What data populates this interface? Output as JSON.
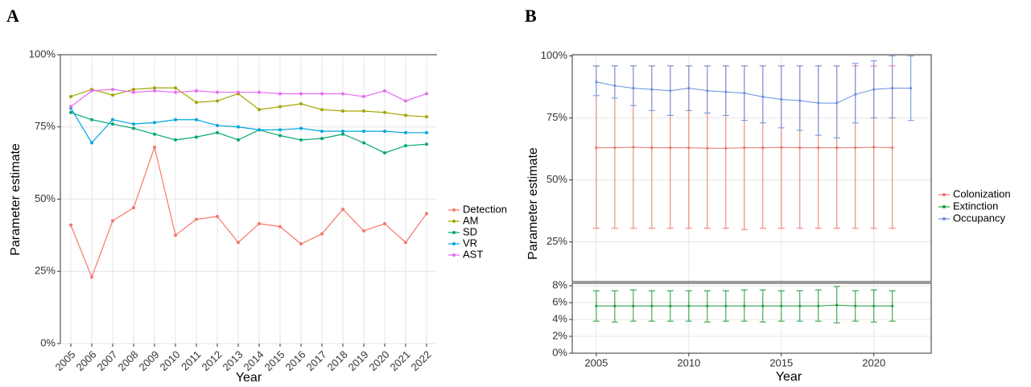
{
  "chart_data": [
    {
      "type": "line",
      "label": "A",
      "x_label": "Year",
      "y_label": "Parameter estimate",
      "grid": true,
      "categories": [
        "2005",
        "2006",
        "2007",
        "2008",
        "2009",
        "2010",
        "2011",
        "2012",
        "2013",
        "2014",
        "2015",
        "2016",
        "2017",
        "2018",
        "2019",
        "2020",
        "2021",
        "2022"
      ],
      "ylim": [
        0,
        100
      ],
      "yticks": [
        {
          "value": 0,
          "label": "0%"
        },
        {
          "value": 25,
          "label": "25%"
        },
        {
          "value": 50,
          "label": "50%"
        },
        {
          "value": 75,
          "label": "75%"
        },
        {
          "value": 100,
          "label": "100%"
        }
      ],
      "series": [
        {
          "name": "Detection",
          "color": "#F8766D",
          "values": [
            41,
            23,
            42.5,
            47,
            68,
            37.5,
            43,
            44,
            35,
            41.5,
            40.5,
            34.5,
            38,
            46.5,
            39,
            41.5,
            35,
            45
          ]
        },
        {
          "name": "AM",
          "color": "#A3A500",
          "values": [
            85.5,
            88,
            86,
            88,
            88.5,
            88.5,
            83.5,
            84,
            86.5,
            81,
            82,
            83,
            81,
            80.5,
            80.5,
            80,
            79,
            78.5
          ]
        },
        {
          "name": "SD",
          "color": "#00A86B",
          "values": [
            80,
            77.5,
            76,
            74.5,
            72.5,
            70.5,
            71.5,
            73,
            70.5,
            74,
            72,
            70.5,
            71,
            72.5,
            69.5,
            66,
            68.5,
            69
          ]
        },
        {
          "name": "VR",
          "color": "#00A5E0",
          "values": [
            81.5,
            69.5,
            77.5,
            76,
            76.5,
            77.5,
            77.5,
            75.5,
            75,
            74,
            74,
            74.5,
            73.5,
            73.5,
            73.5,
            73.5,
            73,
            73
          ]
        },
        {
          "name": "AST",
          "color": "#E76BF3",
          "values": [
            82,
            87.5,
            88,
            87,
            87.5,
            87,
            87.5,
            87,
            87,
            87,
            86.5,
            86.5,
            86.5,
            86.5,
            85.5,
            87.5,
            84,
            86.5
          ]
        }
      ]
    },
    {
      "type": "errorline",
      "label": "B",
      "x_label": "Year",
      "y_label": "Parameter estimate",
      "grid": true,
      "x": [
        2005,
        2006,
        2007,
        2008,
        2009,
        2010,
        2011,
        2012,
        2013,
        2014,
        2015,
        2016,
        2017,
        2018,
        2019,
        2020,
        2021,
        2022
      ],
      "xlim": [
        2003.7,
        2023.1
      ],
      "xticks": [
        2005,
        2010,
        2015,
        2020
      ],
      "ylim": [
        9,
        100.5
      ],
      "yticks": [
        {
          "value": 25,
          "label": "25%"
        },
        {
          "value": 50,
          "label": "50%"
        },
        {
          "value": 75,
          "label": "75%"
        },
        {
          "value": 100,
          "label": "100%"
        }
      ],
      "y2lim": [
        0,
        8.3
      ],
      "y2ticks": [
        {
          "value": 0,
          "label": "0%"
        },
        {
          "value": 2,
          "label": "2%"
        },
        {
          "value": 4,
          "label": "4%"
        },
        {
          "value": 6,
          "label": "6%"
        },
        {
          "value": 8,
          "label": "8%"
        }
      ],
      "series": [
        {
          "name": "Colonization",
          "color": "#E8776B",
          "values": [
            63,
            63,
            63.2,
            63,
            63,
            63,
            62.8,
            62.8,
            63,
            63,
            63.1,
            63,
            63,
            63,
            63,
            63.2,
            63,
            null
          ],
          "lower": [
            30.5,
            30.5,
            30.5,
            30.5,
            30.5,
            30.5,
            30.5,
            30.5,
            30,
            30.5,
            30.5,
            30.5,
            30.5,
            30.5,
            30.5,
            30.5,
            30.5,
            null
          ],
          "upper": [
            96,
            96,
            96,
            96,
            96,
            96,
            96,
            96,
            96,
            96,
            96,
            96,
            96,
            96,
            96,
            96,
            96,
            null
          ]
        },
        {
          "name": "Extinction",
          "color": "#1E9B3C",
          "axis": "y2",
          "values": [
            5.6,
            5.6,
            5.6,
            5.6,
            5.6,
            5.6,
            5.6,
            5.6,
            5.6,
            5.6,
            5.6,
            5.6,
            5.6,
            5.7,
            5.6,
            5.6,
            5.6,
            null
          ],
          "lower": [
            3.8,
            3.7,
            3.8,
            3.8,
            3.8,
            3.8,
            3.7,
            3.8,
            3.8,
            3.7,
            3.8,
            3.8,
            3.8,
            3.6,
            3.8,
            3.7,
            3.8,
            null
          ],
          "upper": [
            7.4,
            7.4,
            7.5,
            7.4,
            7.4,
            7.4,
            7.4,
            7.4,
            7.5,
            7.5,
            7.4,
            7.4,
            7.5,
            7.9,
            7.4,
            7.5,
            7.4,
            null
          ]
        },
        {
          "name": "Occupancy",
          "color": "#6A8FE0",
          "values": [
            89.5,
            88,
            87,
            86.5,
            86,
            87,
            86,
            85.5,
            85,
            83.5,
            82.5,
            82,
            81,
            81,
            84.5,
            86.5,
            87,
            87
          ],
          "lower": [
            84,
            83,
            80,
            78,
            76,
            78,
            77,
            76,
            74,
            73,
            71,
            70,
            68,
            67,
            73,
            75,
            75,
            74
          ],
          "upper": [
            96,
            96,
            96,
            96,
            96,
            96,
            96,
            96,
            96,
            96,
            96,
            96,
            96,
            96,
            97,
            98,
            100,
            100
          ]
        }
      ]
    }
  ]
}
